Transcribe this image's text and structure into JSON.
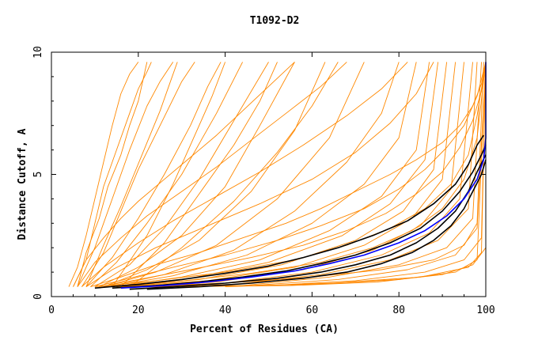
{
  "chart_data": {
    "type": "line",
    "title": "T1092-D2",
    "xlabel": "Percent of Residues (CA)",
    "ylabel": "Distance Cutoff, A",
    "xlim": [
      0,
      100
    ],
    "ylim": [
      0,
      10
    ],
    "xticks": [
      0,
      20,
      40,
      60,
      80,
      100
    ],
    "yticks": [
      0,
      5,
      10
    ],
    "grid": false,
    "colors": {
      "background_models": "#FF8800",
      "highlight_black": "#000000",
      "highlight_blue": "#0000FF",
      "axis": "#000000"
    },
    "series": [
      {
        "color": "#FF8800",
        "x": [
          4,
          6,
          8,
          10,
          12,
          14,
          16,
          18,
          20
        ],
        "y": [
          0.4,
          1.2,
          2.5,
          4,
          5.5,
          7,
          8.3,
          9.1,
          9.6
        ]
      },
      {
        "color": "#FF8800",
        "x": [
          5,
          8,
          10,
          12,
          15,
          18,
          20,
          22,
          23
        ],
        "y": [
          0.4,
          1.5,
          3,
          4.5,
          6,
          7.5,
          8.5,
          9.2,
          9.6
        ]
      },
      {
        "color": "#FF8800",
        "x": [
          6,
          10,
          14,
          18,
          22,
          25,
          28
        ],
        "y": [
          0.4,
          2,
          4,
          6,
          7.8,
          8.8,
          9.6
        ]
      },
      {
        "color": "#FF8800",
        "x": [
          7,
          12,
          16,
          20,
          25,
          30,
          33
        ],
        "y": [
          0.4,
          1.8,
          3.5,
          5.2,
          7,
          8.8,
          9.6
        ]
      },
      {
        "color": "#FF8800",
        "x": [
          8,
          14,
          20,
          26,
          32,
          36,
          39
        ],
        "y": [
          0.4,
          1.6,
          3.2,
          5,
          7,
          8.6,
          9.6
        ]
      },
      {
        "color": "#FF8800",
        "x": [
          9,
          15,
          22,
          30,
          38,
          44
        ],
        "y": [
          0.4,
          1.4,
          3,
          5,
          7.5,
          9.6
        ]
      },
      {
        "color": "#FF8800",
        "x": [
          10,
          18,
          26,
          34,
          42,
          50
        ],
        "y": [
          0.4,
          1.3,
          2.8,
          4.8,
          7.2,
          9.6
        ]
      },
      {
        "color": "#FF8800",
        "x": [
          11,
          20,
          30,
          40,
          48,
          56
        ],
        "y": [
          0.4,
          1.2,
          2.5,
          4.5,
          7,
          9.6
        ]
      },
      {
        "color": "#FF8800",
        "x": [
          12,
          22,
          34,
          46,
          56,
          63
        ],
        "y": [
          0.4,
          1.1,
          2.3,
          4.3,
          6.8,
          9.6
        ]
      },
      {
        "color": "#FF8800",
        "x": [
          12,
          24,
          38,
          52,
          64,
          72
        ],
        "y": [
          0.4,
          1.0,
          2.1,
          4,
          6.5,
          9.6
        ]
      },
      {
        "color": "#FF8800",
        "x": [
          13,
          26,
          42,
          56,
          68,
          76,
          80
        ],
        "y": [
          0.4,
          0.9,
          1.9,
          3.5,
          5.5,
          7.5,
          9.6
        ]
      },
      {
        "color": "#FF8800",
        "x": [
          13,
          28,
          45,
          60,
          72,
          80,
          84
        ],
        "y": [
          0.4,
          0.85,
          1.7,
          3.0,
          4.6,
          6.5,
          9.6
        ]
      },
      {
        "color": "#FF8800",
        "x": [
          14,
          30,
          48,
          64,
          76,
          84,
          87
        ],
        "y": [
          0.4,
          0.8,
          1.5,
          2.7,
          4.1,
          6.0,
          9.6
        ]
      },
      {
        "color": "#FF8800",
        "x": [
          14,
          32,
          50,
          67,
          78,
          86,
          89
        ],
        "y": [
          0.4,
          0.75,
          1.4,
          2.5,
          3.8,
          5.6,
          9.6
        ]
      },
      {
        "color": "#FF8800",
        "x": [
          15,
          34,
          53,
          70,
          81,
          88,
          91
        ],
        "y": [
          0.4,
          0.7,
          1.3,
          2.3,
          3.5,
          5.2,
          9.6
        ]
      },
      {
        "color": "#FF8800",
        "x": [
          15,
          36,
          56,
          72,
          83,
          90,
          93
        ],
        "y": [
          0.4,
          0.65,
          1.2,
          2.1,
          3.2,
          4.8,
          9.6
        ]
      },
      {
        "color": "#FF8800",
        "x": [
          16,
          38,
          58,
          74,
          85,
          92,
          95
        ],
        "y": [
          0.4,
          0.6,
          1.1,
          1.9,
          2.9,
          4.4,
          9.6
        ]
      },
      {
        "color": "#FF8800",
        "x": [
          16,
          40,
          60,
          76,
          87,
          94,
          97
        ],
        "y": [
          0.4,
          0.55,
          1.0,
          1.7,
          2.6,
          4.0,
          9.6
        ]
      },
      {
        "color": "#FF8800",
        "x": [
          17,
          42,
          62,
          78,
          89,
          96,
          98
        ],
        "y": [
          0.4,
          0.5,
          0.9,
          1.5,
          2.3,
          3.6,
          9.6
        ]
      },
      {
        "color": "#FF8800",
        "x": [
          18,
          44,
          64,
          80,
          91,
          97,
          99
        ],
        "y": [
          0.4,
          0.45,
          0.8,
          1.3,
          2.0,
          3.2,
          9.6
        ]
      },
      {
        "color": "#FF8800",
        "x": [
          20,
          46,
          66,
          82,
          93,
          98,
          100
        ],
        "y": [
          0.4,
          0.45,
          0.7,
          1.1,
          1.7,
          2.8,
          9.6
        ]
      },
      {
        "color": "#FF8800",
        "x": [
          22,
          50,
          70,
          86,
          95,
          99,
          100
        ],
        "y": [
          0.4,
          0.45,
          0.65,
          1.0,
          1.5,
          2.4,
          9.6
        ]
      },
      {
        "color": "#FF8800",
        "x": [
          24,
          55,
          75,
          90,
          97,
          100,
          100
        ],
        "y": [
          0.4,
          0.45,
          0.6,
          0.9,
          1.3,
          2.0,
          9.6
        ]
      },
      {
        "color": "#FF8800",
        "x": [
          30,
          60,
          80,
          93,
          98,
          100
        ],
        "y": [
          0.4,
          0.5,
          0.7,
          1.0,
          1.5,
          9.6
        ]
      },
      {
        "color": "#FF8800",
        "x": [
          40,
          65,
          85,
          96,
          99,
          100
        ],
        "y": [
          0.4,
          0.55,
          0.8,
          1.2,
          1.8,
          9.6
        ]
      },
      {
        "color": "#FF8800",
        "x": [
          9,
          16,
          24,
          34,
          44,
          54,
          62,
          70,
          78,
          84,
          90,
          94,
          97,
          99,
          100
        ],
        "y": [
          0.4,
          0.8,
          1.3,
          1.8,
          2.4,
          3.0,
          3.6,
          4.3,
          5.0,
          5.6,
          6.3,
          7.0,
          7.8,
          8.7,
          9.6
        ]
      },
      {
        "color": "#FF8800",
        "x": [
          10,
          18,
          28,
          40,
          52,
          62,
          72,
          80,
          86,
          91,
          95,
          98,
          100
        ],
        "y": [
          0.4,
          0.75,
          1.2,
          1.7,
          2.3,
          2.9,
          3.6,
          4.4,
          5.2,
          6.1,
          7.0,
          8.2,
          9.6
        ]
      },
      {
        "color": "#FF8800",
        "x": [
          11,
          20,
          32,
          46,
          58,
          68,
          77,
          84,
          90,
          94,
          97,
          99,
          100
        ],
        "y": [
          0.4,
          0.7,
          1.1,
          1.6,
          2.1,
          2.7,
          3.4,
          4.2,
          5.1,
          6.1,
          7.2,
          8.4,
          9.6
        ]
      },
      {
        "color": "#FF8800",
        "x": [
          10,
          24,
          40,
          56,
          68,
          78,
          86,
          92,
          96,
          98,
          100
        ],
        "y": [
          0.4,
          0.65,
          1.0,
          1.5,
          2.1,
          2.8,
          3.6,
          4.6,
          5.8,
          7.4,
          9.6
        ]
      },
      {
        "color": "#FF8800",
        "x": [
          12,
          28,
          46,
          62,
          74,
          83,
          90,
          95,
          98,
          100
        ],
        "y": [
          0.4,
          0.6,
          0.95,
          1.4,
          2.0,
          2.7,
          3.6,
          4.8,
          6.5,
          9.6
        ]
      },
      {
        "color": "#FF8800",
        "x": [
          5,
          8,
          12,
          16,
          20,
          26,
          32,
          38,
          44,
          50,
          56
        ],
        "y": [
          0.4,
          1.5,
          2.4,
          3.2,
          3.9,
          4.8,
          5.7,
          6.6,
          7.6,
          8.6,
          9.6
        ]
      },
      {
        "color": "#FF8800",
        "x": [
          6,
          10,
          16,
          22,
          30,
          38,
          46,
          54,
          62,
          68
        ],
        "y": [
          0.4,
          1.4,
          2.4,
          3.3,
          4.3,
          5.3,
          6.4,
          7.5,
          8.6,
          9.6
        ]
      },
      {
        "color": "#FF8800",
        "x": [
          7,
          12,
          20,
          28,
          38,
          48,
          58,
          68,
          76,
          82
        ],
        "y": [
          0.4,
          1.2,
          2.2,
          3.1,
          4.1,
          5.1,
          6.2,
          7.4,
          8.5,
          9.6
        ]
      },
      {
        "color": "#FF8800",
        "x": [
          8,
          14,
          24,
          36,
          48,
          60,
          70,
          78,
          84,
          88
        ],
        "y": [
          0.4,
          1.1,
          2.0,
          2.9,
          3.8,
          4.8,
          5.9,
          7.1,
          8.3,
          9.6
        ]
      },
      {
        "color": "#FF8800",
        "x": [
          20,
          40,
          60,
          76,
          88,
          95,
          98,
          99.5
        ],
        "y": [
          0.4,
          0.55,
          0.8,
          1.1,
          1.5,
          2.1,
          3.0,
          9.6
        ]
      },
      {
        "color": "#FF8800",
        "x": [
          14,
          22,
          28,
          33,
          37,
          40
        ],
        "y": [
          0.4,
          2.5,
          4.6,
          6.6,
          8.2,
          9.6
        ]
      },
      {
        "color": "#FF8800",
        "x": [
          16,
          26,
          34,
          42,
          48,
          52
        ],
        "y": [
          0.4,
          2.2,
          4.2,
          6.2,
          8.0,
          9.6
        ]
      },
      {
        "color": "#FF8800",
        "x": [
          18,
          30,
          42,
          52,
          60,
          66
        ],
        "y": [
          0.4,
          2.0,
          3.9,
          5.9,
          7.8,
          9.6
        ]
      },
      {
        "color": "#FF8800",
        "x": [
          6,
          8,
          11,
          13,
          16,
          18,
          20,
          21,
          22
        ],
        "y": [
          0.4,
          1.8,
          3.2,
          4.5,
          5.8,
          7,
          8,
          8.8,
          9.6
        ]
      },
      {
        "color": "#FF8800",
        "x": [
          8,
          12,
          16,
          19,
          22,
          25,
          27,
          29
        ],
        "y": [
          0.4,
          2.1,
          3.7,
          5.0,
          6.3,
          7.6,
          8.6,
          9.6
        ]
      },
      {
        "color": "#000000",
        "x": [
          10,
          20,
          30,
          40,
          50,
          58,
          66,
          74,
          82,
          88,
          93,
          96,
          98,
          99.5
        ],
        "y": [
          0.35,
          0.5,
          0.7,
          0.95,
          1.25,
          1.6,
          2.0,
          2.5,
          3.1,
          3.8,
          4.6,
          5.4,
          6.2,
          6.6
        ]
      },
      {
        "color": "#000000",
        "x": [
          14,
          24,
          34,
          44,
          54,
          62,
          70,
          78,
          85,
          90,
          94,
          97,
          99,
          100
        ],
        "y": [
          0.35,
          0.45,
          0.6,
          0.8,
          1.05,
          1.35,
          1.7,
          2.2,
          2.8,
          3.5,
          4.3,
          5.1,
          5.8,
          6.2
        ]
      },
      {
        "color": "#000000",
        "x": [
          18,
          28,
          40,
          52,
          62,
          70,
          78,
          84,
          89,
          93,
          96,
          98,
          100
        ],
        "y": [
          0.3,
          0.4,
          0.55,
          0.75,
          1.0,
          1.3,
          1.7,
          2.2,
          2.8,
          3.5,
          4.3,
          5.1,
          5.8
        ]
      },
      {
        "color": "#000000",
        "x": [
          22,
          34,
          46,
          58,
          68,
          76,
          83,
          88,
          92,
          95,
          97,
          99,
          100
        ],
        "y": [
          0.3,
          0.4,
          0.55,
          0.75,
          1.0,
          1.35,
          1.8,
          2.3,
          2.9,
          3.6,
          4.3,
          5.0,
          5.6
        ]
      },
      {
        "color": "#0000FF",
        "x": [
          16,
          26,
          36,
          46,
          56,
          64,
          72,
          80,
          86,
          91,
          95,
          98,
          99.5,
          100,
          100
        ],
        "y": [
          0.35,
          0.45,
          0.6,
          0.8,
          1.05,
          1.35,
          1.7,
          2.2,
          2.7,
          3.3,
          4.0,
          4.8,
          5.6,
          6.5,
          9.6
        ]
      }
    ]
  }
}
